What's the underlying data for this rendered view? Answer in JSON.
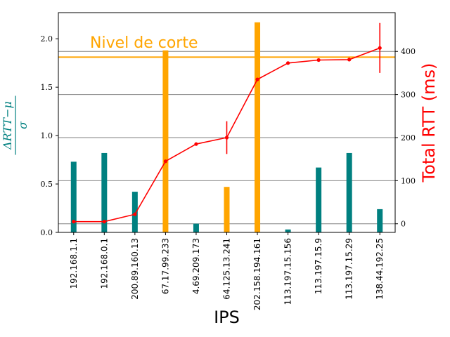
{
  "chart_data": {
    "type": "bar",
    "xlabel": "IPS",
    "ylabel_left": "ΔRTT−μ",
    "ylabel_left_denominator": "σ",
    "ylabel_right": "Total RTT (ms)",
    "annotation": "Nivel de corte",
    "categories": [
      "192.168.1.1",
      "192.168.0.1",
      "200.89.160.13",
      "67.17.99.233",
      "4.69.209.173",
      "64.125.13.241",
      "202.158.194.161",
      "113.197.15.156",
      "113.197.15.9",
      "113.197.15.29",
      "138.44.192.25"
    ],
    "bars": [
      0.73,
      0.82,
      0.42,
      1.88,
      0.09,
      0.47,
      2.17,
      0.03,
      0.67,
      0.82,
      0.24
    ],
    "bar_highlight": [
      false,
      false,
      false,
      true,
      false,
      true,
      true,
      false,
      false,
      false,
      false
    ],
    "bar_highlight_note": "highlighted bars are orange",
    "rtt": [
      5,
      5,
      22,
      145,
      185,
      200,
      335,
      373,
      380,
      381,
      408
    ],
    "rtt_error": [
      0,
      0,
      0,
      0,
      0,
      38,
      0,
      0,
      0,
      0,
      58
    ],
    "cutoff": 1.81,
    "ylim_left": [
      0,
      2.27
    ],
    "ylim_right": [
      -20,
      490
    ],
    "yticks_left": [
      "0.0",
      "0.5",
      "1.0",
      "1.5",
      "2.0"
    ],
    "yticks_left_values": [
      0,
      0.5,
      1.0,
      1.5,
      2.0
    ],
    "yticks_right": [
      "0",
      "100",
      "200",
      "300",
      "400"
    ],
    "yticks_right_values": [
      0,
      100,
      200,
      300,
      400
    ],
    "grid": "horizontal at right-axis ticks",
    "colors": {
      "bar_normal": "#008080",
      "bar_highlight": "#ffa500",
      "cutoff_line": "#ffa500",
      "rtt_line": "#ff0000",
      "grid": "#808080",
      "left_axis_label": "#008080",
      "right_axis_label": "#ff0000"
    }
  }
}
